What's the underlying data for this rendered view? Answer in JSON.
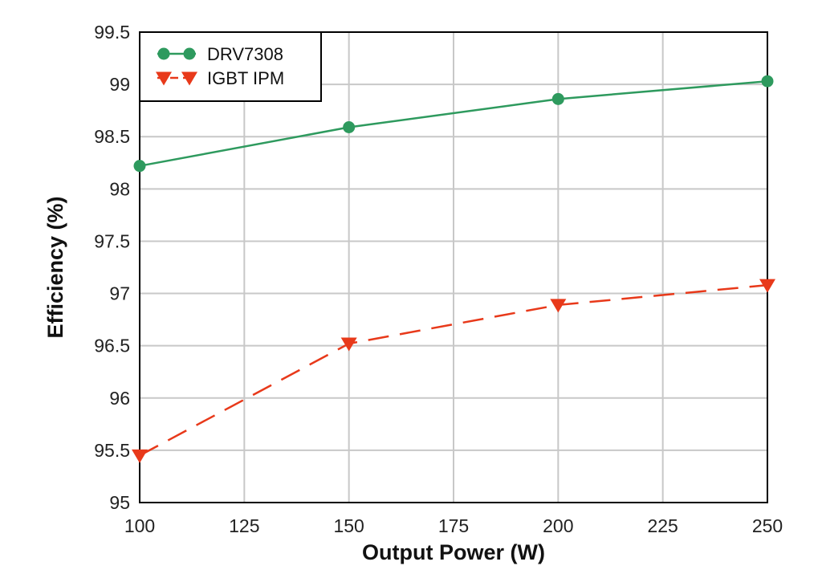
{
  "chart_data": {
    "type": "line",
    "title": "",
    "xlabel": "Output Power (W)",
    "ylabel": "Efficiency (%)",
    "x": [
      100,
      150,
      200,
      250
    ],
    "xlim": [
      100,
      250
    ],
    "ylim": [
      95,
      99.5
    ],
    "xticks": [
      100,
      125,
      150,
      175,
      200,
      225,
      250
    ],
    "yticks": [
      95,
      95.5,
      96,
      96.5,
      97,
      97.5,
      98,
      98.5,
      99,
      99.5
    ],
    "xtick_labels": [
      "100",
      "125",
      "150",
      "175",
      "200",
      "225",
      "250"
    ],
    "ytick_labels": [
      "95",
      "95.5",
      "96",
      "96.5",
      "97",
      "97.5",
      "98",
      "98.5",
      "99",
      "99.5"
    ],
    "grid": true,
    "legend_position": "top-left",
    "series": [
      {
        "name": "DRV7308",
        "values": [
          98.22,
          98.59,
          98.86,
          99.03
        ],
        "color": "#2e9a5e",
        "marker": "circle",
        "line": "solid"
      },
      {
        "name": "IGBT IPM",
        "values": [
          95.45,
          96.52,
          96.89,
          97.08
        ],
        "color": "#e8391a",
        "marker": "triangle-down",
        "line": "dashed"
      }
    ]
  }
}
